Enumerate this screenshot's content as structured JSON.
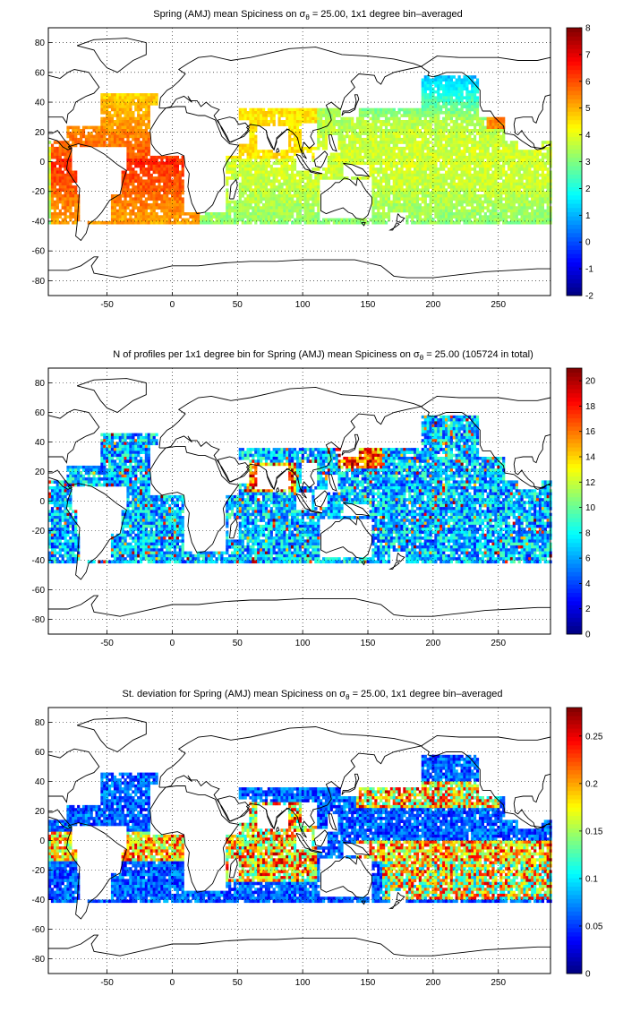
{
  "figure": {
    "background": "#ffffff",
    "land_color": "#ffffff",
    "coast_color": "#000000",
    "grid_style": "dotted",
    "colormap": "jet"
  },
  "chart_data": [
    {
      "type": "heatmap",
      "title": {
        "pre": "Spring (AMJ) mean Spiciness on ",
        "sym": "σ",
        "sub": "θ",
        "post": " = 25.00, 1x1 degree bin–averaged"
      },
      "xlim": [
        -95,
        290
      ],
      "ylim": [
        -90,
        90
      ],
      "xticks": [
        -50,
        0,
        50,
        100,
        150,
        200,
        250
      ],
      "yticks": [
        -80,
        -60,
        -40,
        -20,
        0,
        20,
        40,
        60,
        80
      ],
      "grid": true,
      "colorbar": {
        "min": -2,
        "max": 8,
        "ticks": [
          -2,
          -1,
          0,
          1,
          2,
          3,
          4,
          5,
          6,
          7,
          8
        ]
      },
      "ocean_coverage": {
        "lat_range": [
          -42,
          45
        ],
        "north_pacific_max_lat": 58
      },
      "field_description": "high spiciness (5-7) in the North and South Atlantic subtropics; 3-4 in the Pacific and Indian Oceans, lower (1-2) in the North Pacific subpolar region"
    },
    {
      "type": "heatmap",
      "title": {
        "pre": "N of profiles per 1x1 degree bin for Spring (AMJ) mean Spiciness on ",
        "sym": "σ",
        "sub": "θ",
        "post": " = 25.00 (105724 in total)"
      },
      "total_profiles": 105724,
      "xlim": [
        -95,
        290
      ],
      "ylim": [
        -90,
        90
      ],
      "xticks": [
        -50,
        0,
        50,
        100,
        150,
        200,
        250
      ],
      "yticks": [
        -80,
        -60,
        -40,
        -20,
        0,
        20,
        40,
        60,
        80
      ],
      "grid": true,
      "colorbar": {
        "min": 0,
        "max": 21,
        "ticks": [
          0,
          2,
          4,
          6,
          8,
          10,
          12,
          14,
          16,
          18,
          20
        ]
      },
      "field_description": "mostly 2-10 profiles per bin; maxima (>18) east of Japan (Kuroshio) and in the Arabian Sea and Bay of Bengal"
    },
    {
      "type": "heatmap",
      "title": {
        "pre": "St. deviation for Spring (AMJ) mean Spiciness on ",
        "sym": "σ",
        "sub": "θ",
        "post": " = 25.00, 1x1 degree bin–averaged"
      },
      "xlim": [
        -95,
        290
      ],
      "ylim": [
        -90,
        90
      ],
      "xticks": [
        -50,
        0,
        50,
        100,
        150,
        200,
        250
      ],
      "yticks": [
        -80,
        -60,
        -40,
        -20,
        0,
        20,
        40,
        60,
        80
      ],
      "grid": true,
      "colorbar": {
        "min": 0,
        "max": 0.28,
        "ticks": [
          0,
          0.05,
          0.1,
          0.15,
          0.2,
          0.25
        ]
      },
      "field_description": "low variability (<0.05) in the subtropical gyres; high (>0.2) along the equatorial bands, the Kuroshio extension, the Arabian Sea and the subtropical South Pacific"
    }
  ]
}
